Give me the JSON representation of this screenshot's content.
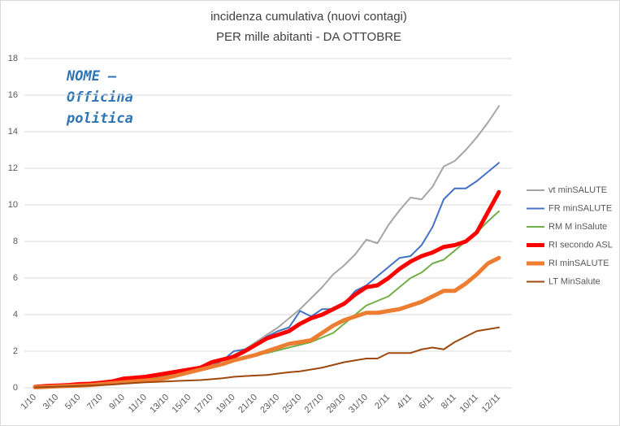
{
  "chart_data": {
    "type": "line",
    "title": [
      "incidenza cumulativa (nuovi contagi)",
      "PER mille  abitanti - DA OTTOBRE"
    ],
    "annotation": [
      "NOME  –",
      "Officina",
      "politica"
    ],
    "categories": [
      "1/10",
      null,
      "3/10",
      null,
      "5/10",
      null,
      "7/10",
      null,
      "9/10",
      null,
      "11/10",
      null,
      "13/10",
      null,
      "15/10",
      null,
      "17/10",
      null,
      "19/10",
      null,
      "21/10",
      null,
      "23/10",
      null,
      "25/10",
      null,
      "27/10",
      null,
      "29/10",
      null,
      "31/10",
      null,
      "2/11",
      null,
      "4/11",
      null,
      "6/11",
      null,
      "8/11",
      null,
      "10/11",
      null,
      "12/11"
    ],
    "ylim": [
      0,
      18
    ],
    "yticks": [
      0,
      2,
      4,
      6,
      8,
      10,
      12,
      14,
      16,
      18
    ],
    "grid": true,
    "series": [
      {
        "name": "vt minSALUTE",
        "color": "#a5a5a5",
        "values": [
          0.05,
          0.1,
          0.12,
          0.15,
          0.18,
          0.2,
          0.25,
          0.3,
          0.4,
          0.5,
          0.55,
          0.6,
          0.7,
          0.8,
          0.9,
          1.0,
          1.3,
          1.5,
          1.8,
          2.1,
          2.5,
          2.9,
          3.3,
          3.8,
          4.3,
          4.9,
          5.5,
          6.2,
          6.7,
          7.3,
          8.1,
          7.9,
          8.9,
          9.7,
          10.4,
          10.3,
          11.0,
          12.1,
          12.4,
          13.0,
          13.7,
          14.5,
          15.4
        ]
      },
      {
        "name": "FR minSALUTE",
        "color": "#4472c4",
        "values": [
          0.05,
          0.1,
          0.1,
          0.15,
          0.2,
          0.2,
          0.25,
          0.3,
          0.4,
          0.5,
          0.55,
          0.6,
          0.7,
          0.8,
          0.9,
          1.0,
          1.2,
          1.5,
          2.0,
          2.1,
          2.4,
          2.8,
          3.1,
          3.3,
          4.2,
          3.9,
          4.3,
          4.3,
          4.6,
          5.3,
          5.6,
          6.1,
          6.6,
          7.1,
          7.2,
          7.8,
          8.8,
          10.3,
          10.9,
          10.9,
          11.3,
          11.8,
          12.3
        ]
      },
      {
        "name": "RM M inSalute",
        "color": "#70ad47",
        "values": [
          0.05,
          0.1,
          0.1,
          0.12,
          0.15,
          0.2,
          0.25,
          0.3,
          0.4,
          0.45,
          0.5,
          0.55,
          0.65,
          0.75,
          0.85,
          0.95,
          1.1,
          1.3,
          1.45,
          1.6,
          1.8,
          1.9,
          2.05,
          2.2,
          2.35,
          2.5,
          2.75,
          3.0,
          3.5,
          4.0,
          4.5,
          4.75,
          5.0,
          5.5,
          6.0,
          6.3,
          6.8,
          7.0,
          7.5,
          8.0,
          8.5,
          9.1,
          9.65
        ]
      },
      {
        "name": "RI secondo ASL",
        "color": "#ff0000",
        "values": [
          0.05,
          0.1,
          0.12,
          0.15,
          0.2,
          0.22,
          0.28,
          0.35,
          0.5,
          0.55,
          0.6,
          0.7,
          0.8,
          0.9,
          1.0,
          1.1,
          1.4,
          1.55,
          1.7,
          2.0,
          2.35,
          2.7,
          2.9,
          3.1,
          3.5,
          3.8,
          4.0,
          4.3,
          4.6,
          5.1,
          5.5,
          5.6,
          6.0,
          6.5,
          6.9,
          7.2,
          7.4,
          7.7,
          7.8,
          8.0,
          8.5,
          9.6,
          10.7
        ]
      },
      {
        "name": "RI minSALUTE",
        "color": "#ed7d31",
        "values": [
          0.03,
          0.05,
          0.08,
          0.1,
          0.12,
          0.15,
          0.2,
          0.25,
          0.3,
          0.35,
          0.4,
          0.45,
          0.55,
          0.7,
          0.85,
          1.0,
          1.15,
          1.3,
          1.5,
          1.65,
          1.8,
          2.0,
          2.2,
          2.4,
          2.5,
          2.6,
          3.0,
          3.4,
          3.7,
          3.9,
          4.1,
          4.1,
          4.2,
          4.3,
          4.5,
          4.7,
          5.0,
          5.3,
          5.3,
          5.7,
          6.2,
          6.8,
          7.1
        ]
      },
      {
        "name": "LT MinSalute",
        "color": "#9e480e",
        "values": [
          0.02,
          0.04,
          0.06,
          0.08,
          0.1,
          0.12,
          0.15,
          0.18,
          0.22,
          0.26,
          0.3,
          0.32,
          0.35,
          0.38,
          0.4,
          0.42,
          0.47,
          0.52,
          0.6,
          0.64,
          0.67,
          0.7,
          0.78,
          0.85,
          0.9,
          1.0,
          1.1,
          1.25,
          1.4,
          1.5,
          1.6,
          1.6,
          1.9,
          1.9,
          1.9,
          2.1,
          2.2,
          2.1,
          2.5,
          2.8,
          3.1,
          3.2,
          3.3
        ]
      }
    ]
  }
}
